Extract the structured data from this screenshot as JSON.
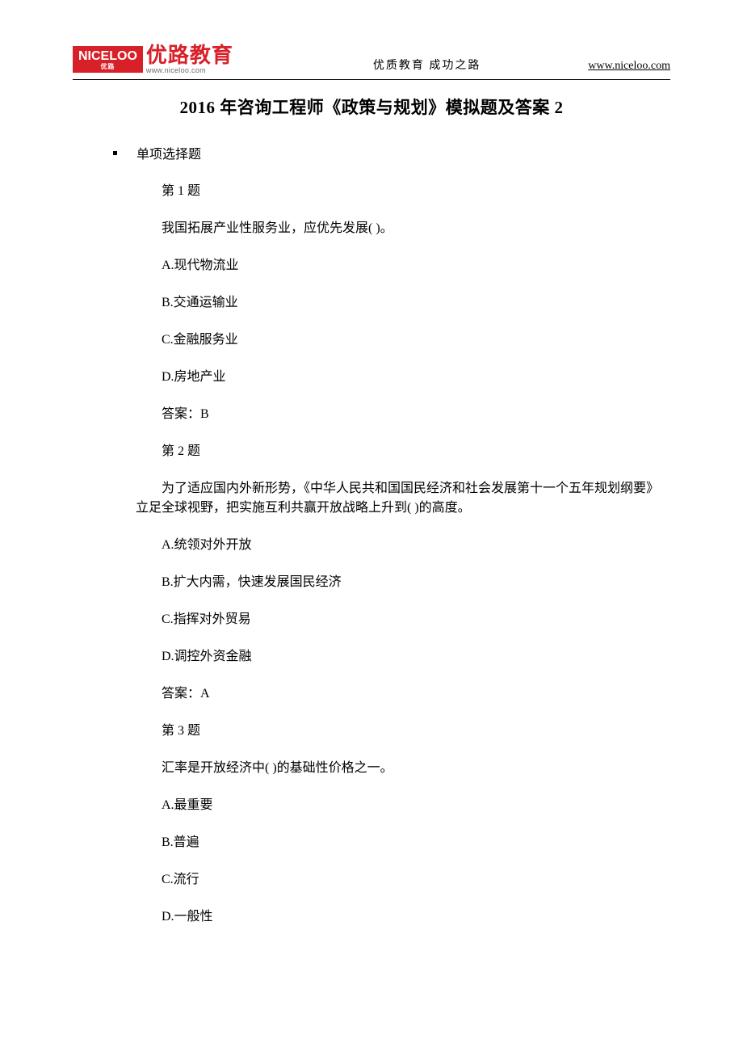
{
  "header": {
    "logo_badge_main": "NICELOO",
    "logo_badge_sub": "优路",
    "logo_cn": "优路教育",
    "logo_url": "www.niceloo.com",
    "center_text": "优质教育  成功之路",
    "right_url": "www.niceloo.com"
  },
  "title": "2016 年咨询工程师《政策与规划》模拟题及答案 2",
  "section_label": "单项选择题",
  "q1": {
    "num": "第 1 题",
    "stem": "我国拓展产业性服务业，应优先发展( )。",
    "a": "A.现代物流业",
    "b": "B.交通运输业",
    "c": "C.金融服务业",
    "d": "D.房地产业",
    "ans": "答案：B"
  },
  "q2": {
    "num": "第 2 题",
    "stem": "为了适应国内外新形势，《中华人民共和国国民经济和社会发展第十一个五年规划纲要》立足全球视野，把实施互利共赢开放战略上升到( )的高度。",
    "a": "A.统领对外开放",
    "b": "B.扩大内需，快速发展国民经济",
    "c": "C.指挥对外贸易",
    "d": "D.调控外资金融",
    "ans": "答案：A"
  },
  "q3": {
    "num": "第 3 题",
    "stem": "汇率是开放经济中( )的基础性价格之一。",
    "a": "A.最重要",
    "b": "B.普遍",
    "c": "C.流行",
    "d": "D.一般性"
  },
  "colors": {
    "brand_red": "#d82028",
    "text_black": "#000000",
    "url_gray": "#6a6a6a",
    "background": "#ffffff"
  },
  "typography": {
    "title_fontsize": 21,
    "body_fontsize": 16,
    "header_fontsize": 14,
    "logo_cn_fontsize": 26
  }
}
